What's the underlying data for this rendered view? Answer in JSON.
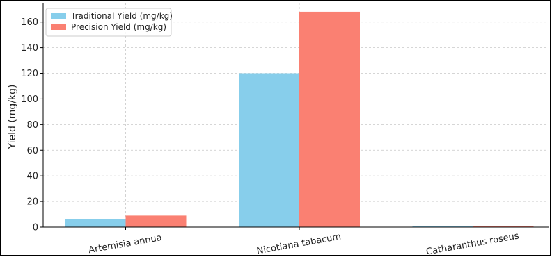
{
  "chart_data": {
    "type": "bar",
    "categories": [
      "Artemisia annua",
      "Nicotiana tabacum",
      "Catharanthus roseus"
    ],
    "series": [
      {
        "name": "Traditional Yield (mg/kg)",
        "values": [
          6,
          120,
          0.5
        ],
        "color": "#87CEEB"
      },
      {
        "name": "Precision Yield (mg/kg)",
        "values": [
          9,
          168,
          0.7
        ],
        "color": "#FA8072"
      }
    ],
    "title": "",
    "xlabel": "",
    "ylabel": "Yield (mg/kg)",
    "ylim": [
      0,
      175
    ],
    "yticks": [
      0,
      20,
      40,
      60,
      80,
      100,
      120,
      140,
      160
    ],
    "grid": true,
    "legend_position": "top-left"
  }
}
